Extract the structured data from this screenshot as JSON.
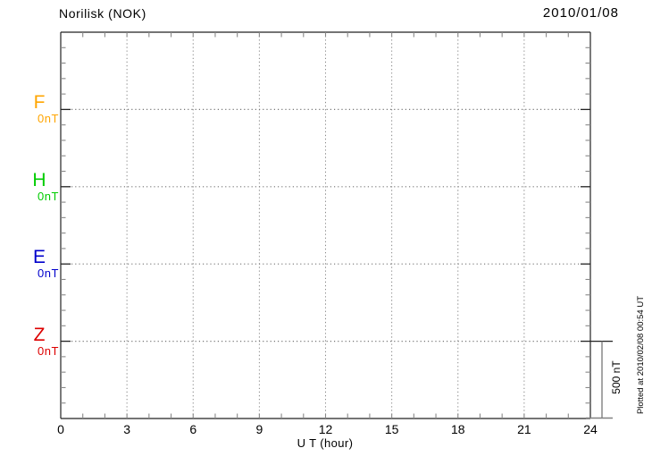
{
  "chart_data": {
    "type": "line",
    "title": "Norilisk (NOK)",
    "observatory_name": "Norilisk",
    "observatory_code": "NOK",
    "date": "2010/01/08",
    "xlabel": "U T (hour)",
    "x_range_hours": [
      0,
      24
    ],
    "x_tick_labels": [
      "0",
      "3",
      "6",
      "9",
      "12",
      "15",
      "18",
      "21",
      "24"
    ],
    "x_minor_tick_interval_hours": 1,
    "x_gridline_interval_hours": 3,
    "y_minor_tick_interval_nT": 100,
    "channel_offset_nT": 500,
    "channels": [
      {
        "name": "F",
        "baseline_label": "0nT",
        "baseline_nT": 0,
        "color": "#FFA500",
        "values": []
      },
      {
        "name": "H",
        "baseline_label": "0nT",
        "baseline_nT": 0,
        "color": "#00CC00",
        "values": []
      },
      {
        "name": "E",
        "baseline_label": "0nT",
        "baseline_nT": 0,
        "color": "#0000CC",
        "values": []
      },
      {
        "name": "Z",
        "baseline_label": "0nT",
        "baseline_nT": 0,
        "color": "#DD0000",
        "values": []
      }
    ],
    "scale_bar": {
      "label": "500 nT",
      "value_nT": 500
    },
    "footer_note": "Plotted at 2010/02/08 00:54 UT",
    "grid": "dotted",
    "note": "Empty magnetogram frame - dotted 0 nT baselines for F, H, E, Z; no data traces plotted"
  }
}
